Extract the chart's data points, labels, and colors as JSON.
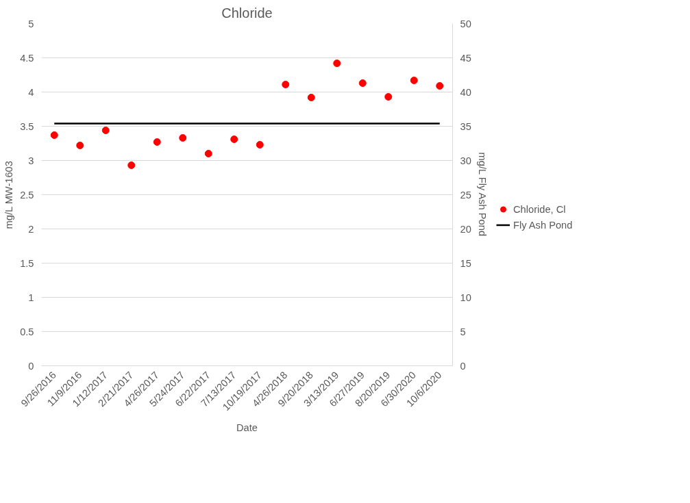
{
  "chart_data": {
    "type": "scatter",
    "title": "Chloride",
    "xlabel": "Date",
    "ylabel": "mg/L MW-1603",
    "y2label": "mg/L Fly Ash Pond",
    "categories": [
      "9/26/2016",
      "11/9/2016",
      "1/12/2017",
      "2/21/2017",
      "4/26/2017",
      "5/24/2017",
      "6/22/2017",
      "7/13/2017",
      "10/19/2017",
      "4/26/2018",
      "9/20/2018",
      "3/13/2019",
      "6/27/2019",
      "8/20/2019",
      "6/30/2020",
      "10/6/2020"
    ],
    "series": [
      {
        "name": "Chloride, Cl",
        "color": "#ff0000",
        "values": [
          3.37,
          3.22,
          3.44,
          2.93,
          3.27,
          3.33,
          3.1,
          3.31,
          3.23,
          4.11,
          3.92,
          4.42,
          4.13,
          3.93,
          4.17,
          4.09
        ]
      },
      {
        "name": "Fly Ash Pond",
        "type": "line",
        "axis": "y2",
        "color": "#000000",
        "line_style": "solid",
        "marker": "none",
        "values": [
          35.4,
          35.4,
          35.4,
          35.4,
          35.4,
          35.4,
          35.4,
          35.4,
          35.4,
          35.4,
          35.4,
          35.4,
          35.4,
          35.4,
          35.4,
          35.4
        ]
      }
    ],
    "ylim": [
      0,
      5
    ],
    "yticks": [
      0,
      0.5,
      1,
      1.5,
      2,
      2.5,
      3,
      3.5,
      4,
      4.5,
      5
    ],
    "y2lim": [
      0,
      50
    ],
    "y2ticks": [
      0,
      5,
      10,
      15,
      20,
      25,
      30,
      35,
      40,
      45,
      50
    ],
    "grid": "y",
    "legend": "right"
  }
}
